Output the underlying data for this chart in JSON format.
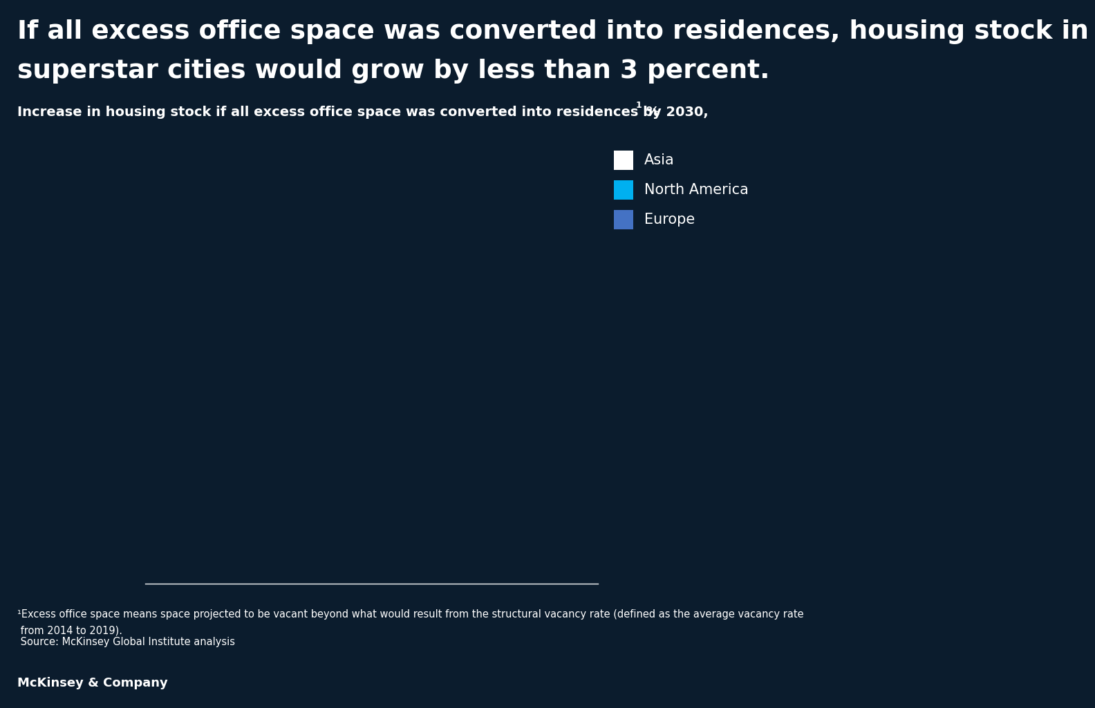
{
  "background_color": "#0b1c2d",
  "title_line1": "If all excess office space was converted into residences, housing stock in",
  "title_line2": "superstar cities would grow by less than 3 percent.",
  "subtitle_main": "Increase in housing stock if all excess office space was converted into residences by 2030,",
  "subtitle_sup": "1",
  "subtitle_pct": " %",
  "legend_items": [
    {
      "label": "Asia",
      "color": "#ffffff"
    },
    {
      "label": "North America",
      "color": "#00b0f0"
    },
    {
      "label": "Europe",
      "color": "#4472c4"
    }
  ],
  "footnote_line1": "¹Excess office space means space projected to be vacant beyond what would result from the structural vacancy rate (defined as the average vacancy rate",
  "footnote_line2": " from 2014 to 2019).",
  "footnote_line3": " Source: McKinsey Global Institute analysis",
  "branding": "McKinsey & Company",
  "separator_color": "#ffffff",
  "text_color": "#ffffff",
  "title_fontsize": 27,
  "subtitle_fontsize": 14,
  "footnote_fontsize": 10.5,
  "branding_fontsize": 13,
  "legend_fontsize": 15
}
